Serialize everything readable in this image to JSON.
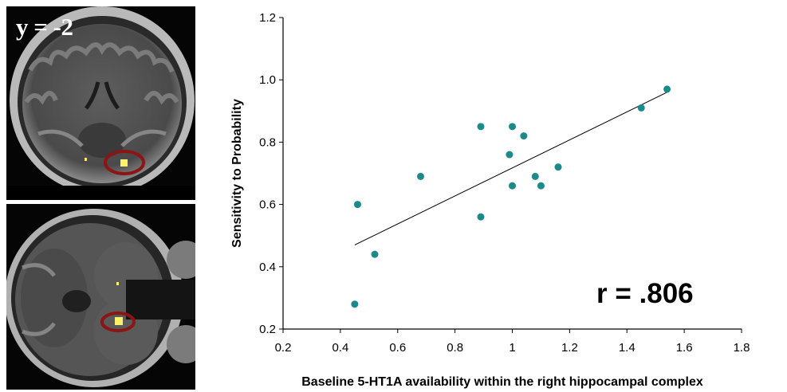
{
  "brain_panels": {
    "coronal_label": "y = -2"
  },
  "colors": {
    "points": "#1a8a8a",
    "roi_circle": "#8b1414",
    "activation": "#fff06a"
  },
  "chart_data": {
    "type": "scatter",
    "xlabel": "Baseline 5-HT1A availability within the right hippocampal complex",
    "ylabel": "Sensitivity to Probability",
    "xlim": [
      0.2,
      1.8
    ],
    "ylim": [
      0.2,
      1.2
    ],
    "x_ticks": [
      "0.2",
      "0.4",
      "0.6",
      "0.8",
      "1",
      "1.2",
      "1.4",
      "1.6",
      "1.8"
    ],
    "y_ticks": [
      "0.2",
      "0.4",
      "0.6",
      "0.8",
      "1.0",
      "1.2"
    ],
    "grid": false,
    "points": [
      {
        "x": 0.45,
        "y": 0.28
      },
      {
        "x": 0.46,
        "y": 0.6
      },
      {
        "x": 0.52,
        "y": 0.44
      },
      {
        "x": 0.68,
        "y": 0.69
      },
      {
        "x": 0.89,
        "y": 0.85
      },
      {
        "x": 0.89,
        "y": 0.56
      },
      {
        "x": 0.99,
        "y": 0.76
      },
      {
        "x": 1.0,
        "y": 0.85
      },
      {
        "x": 1.0,
        "y": 0.66
      },
      {
        "x": 1.04,
        "y": 0.82
      },
      {
        "x": 1.08,
        "y": 0.69
      },
      {
        "x": 1.1,
        "y": 0.66
      },
      {
        "x": 1.16,
        "y": 0.72
      },
      {
        "x": 1.45,
        "y": 0.91
      },
      {
        "x": 1.54,
        "y": 0.97
      }
    ],
    "trendline": {
      "x": [
        0.45,
        1.54
      ],
      "y": [
        0.47,
        0.96
      ]
    },
    "annotation": "r = .806"
  }
}
